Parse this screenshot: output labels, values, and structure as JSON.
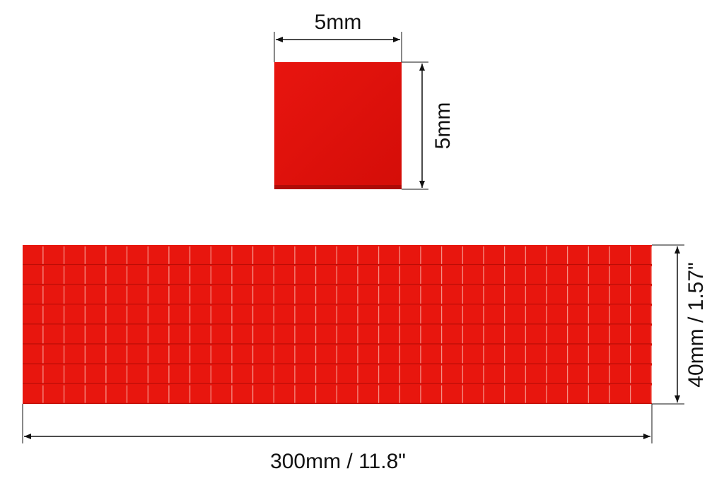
{
  "labels": {
    "square_width": "5mm",
    "square_height": "5mm",
    "strip_height": "40mm / 1.57\"",
    "strip_length": "300mm / 11.8\""
  }
}
